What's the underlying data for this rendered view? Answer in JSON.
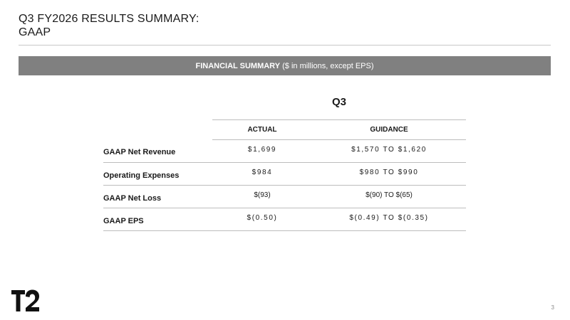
{
  "slide": {
    "title_line1": "Q3 FY2026 RESULTS SUMMARY:",
    "title_line2": "GAAP",
    "page_number": "3",
    "logo_icon": "t2-logo-icon"
  },
  "banner": {
    "bold_text": "FINANCIAL SUMMARY",
    "normal_text": " ($ in millions, except EPS)",
    "background_color": "#808080"
  },
  "table": {
    "period": "Q3",
    "columns": [
      "ACTUAL",
      "GUIDANCE"
    ],
    "rows": [
      {
        "label": "GAAP Net Revenue",
        "actual": "$1,699",
        "guidance": "$1,570 TO $1,620"
      },
      {
        "label": "Operating Expenses",
        "actual": "$984",
        "guidance": "$980 TO $990"
      },
      {
        "label": "GAAP Net Loss",
        "actual": "$(93)",
        "guidance": "$(90) TO $(65)"
      },
      {
        "label": "GAAP EPS",
        "actual": "$(0.50)",
        "guidance": "$(0.49) TO $(0.35)"
      }
    ]
  }
}
